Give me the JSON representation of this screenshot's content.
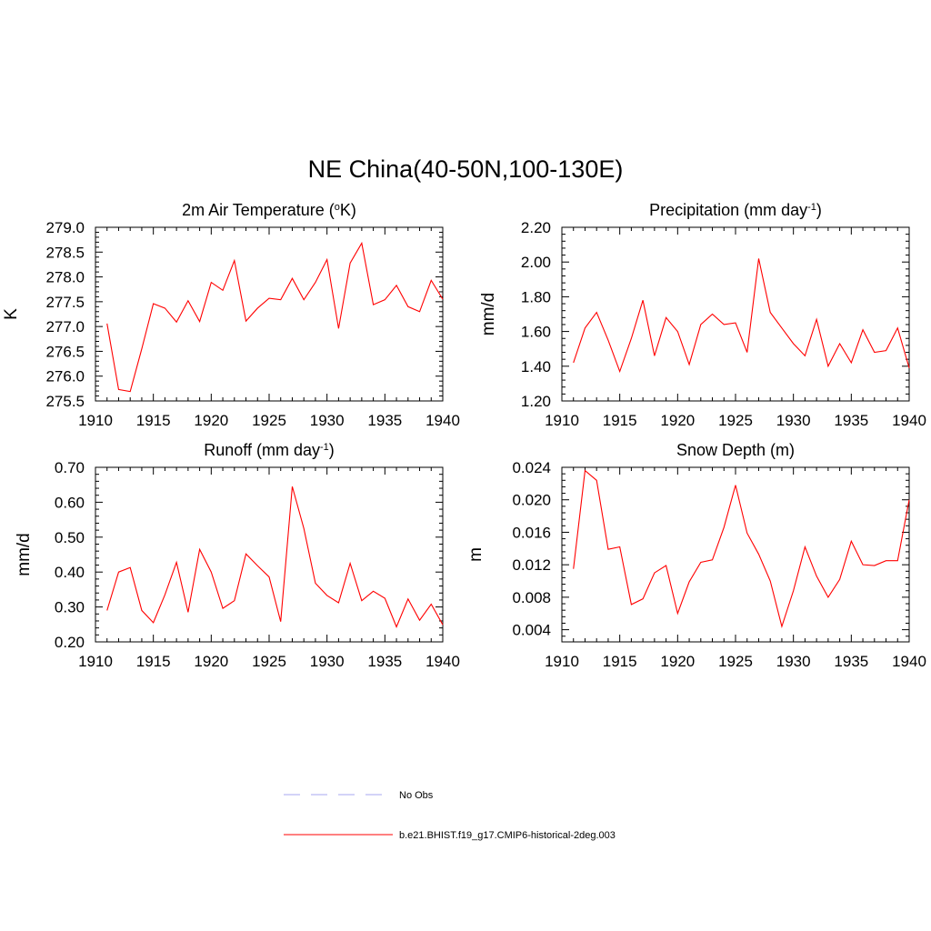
{
  "figure": {
    "title": "NE China(40-50N,100-130E)"
  },
  "legend": {
    "entries": [
      {
        "label": "No Obs",
        "style": "dashed",
        "color": "#a7a7f0"
      },
      {
        "label": "b.e21.BHIST.f19_g17.CMIP6-historical-2deg.003",
        "style": "solid",
        "color": "#ff0000"
      }
    ]
  },
  "chart_data": [
    {
      "type": "line",
      "title": "2m Air Temperature",
      "title_unit": "K",
      "title_sup": "o",
      "ylabel": "K",
      "xlim": [
        1910,
        1940
      ],
      "ylim": [
        275.5,
        279.0
      ],
      "x_ticks": [
        1910,
        1915,
        1920,
        1925,
        1930,
        1935,
        1940
      ],
      "x_tick_labels": [
        "1910",
        "1915",
        "1920",
        "1925",
        "1930",
        "1935",
        "1940"
      ],
      "y_ticks": [
        275.5,
        276.0,
        276.5,
        277.0,
        277.5,
        278.0,
        278.5,
        279.0
      ],
      "y_tick_labels": [
        "275.5",
        "276.0",
        "276.5",
        "277.0",
        "277.5",
        "278.0",
        "278.5",
        "279.0"
      ],
      "grid": false,
      "series": [
        {
          "color": "#ff0000",
          "x": [
            1911,
            1912,
            1913,
            1914,
            1915,
            1916,
            1917,
            1918,
            1919,
            1920,
            1921,
            1922,
            1923,
            1924,
            1925,
            1926,
            1927,
            1928,
            1929,
            1930,
            1931,
            1932,
            1933,
            1934,
            1935,
            1936,
            1937,
            1938,
            1939,
            1940
          ],
          "values": [
            277.06,
            275.73,
            275.69,
            276.55,
            277.46,
            277.37,
            277.09,
            277.52,
            277.1,
            277.89,
            277.73,
            278.33,
            277.11,
            277.37,
            277.57,
            277.54,
            277.97,
            277.54,
            277.89,
            278.35,
            276.96,
            278.28,
            278.68,
            277.44,
            277.54,
            277.83,
            277.4,
            277.3,
            277.93,
            277.55
          ]
        }
      ]
    },
    {
      "type": "line",
      "title": "Precipitation (mm day",
      "title_sup": "-1",
      "title_tail": ")",
      "ylabel": "mm/d",
      "xlim": [
        1910,
        1940
      ],
      "ylim": [
        1.2,
        2.2
      ],
      "x_ticks": [
        1910,
        1915,
        1920,
        1925,
        1930,
        1935,
        1940
      ],
      "x_tick_labels": [
        "1910",
        "1915",
        "1920",
        "1925",
        "1930",
        "1935",
        "1940"
      ],
      "y_ticks": [
        1.2,
        1.4,
        1.6,
        1.8,
        2.0,
        2.2
      ],
      "y_tick_labels": [
        "1.20",
        "1.40",
        "1.60",
        "1.80",
        "2.00",
        "2.20"
      ],
      "grid": false,
      "series": [
        {
          "color": "#ff0000",
          "x": [
            1911,
            1912,
            1913,
            1914,
            1915,
            1916,
            1917,
            1918,
            1919,
            1920,
            1921,
            1922,
            1923,
            1924,
            1925,
            1926,
            1927,
            1928,
            1929,
            1930,
            1931,
            1932,
            1933,
            1934,
            1935,
            1936,
            1937,
            1938,
            1939,
            1940
          ],
          "values": [
            1.42,
            1.62,
            1.71,
            1.55,
            1.37,
            1.56,
            1.78,
            1.46,
            1.68,
            1.6,
            1.41,
            1.64,
            1.7,
            1.64,
            1.65,
            1.48,
            2.02,
            1.71,
            1.62,
            1.53,
            1.46,
            1.67,
            1.4,
            1.53,
            1.42,
            1.61,
            1.48,
            1.49,
            1.62,
            1.39
          ]
        }
      ]
    },
    {
      "type": "line",
      "title": "Runoff (mm day",
      "title_sup": "-1",
      "title_tail": ")",
      "ylabel": "mm/d",
      "xlim": [
        1910,
        1940
      ],
      "ylim": [
        0.2,
        0.7
      ],
      "x_ticks": [
        1910,
        1915,
        1920,
        1925,
        1930,
        1935,
        1940
      ],
      "x_tick_labels": [
        "1910",
        "1915",
        "1920",
        "1925",
        "1930",
        "1935",
        "1940"
      ],
      "y_ticks": [
        0.2,
        0.3,
        0.4,
        0.5,
        0.6,
        0.7
      ],
      "y_tick_labels": [
        "0.20",
        "0.30",
        "0.40",
        "0.50",
        "0.60",
        "0.70"
      ],
      "grid": false,
      "series": [
        {
          "color": "#ff0000",
          "x": [
            1911,
            1912,
            1913,
            1914,
            1915,
            1916,
            1917,
            1918,
            1919,
            1920,
            1921,
            1922,
            1923,
            1924,
            1925,
            1926,
            1927,
            1928,
            1929,
            1930,
            1931,
            1932,
            1933,
            1934,
            1935,
            1936,
            1937,
            1938,
            1939,
            1940
          ],
          "values": [
            0.29,
            0.4,
            0.413,
            0.29,
            0.255,
            0.335,
            0.428,
            0.285,
            0.465,
            0.4,
            0.296,
            0.318,
            0.452,
            0.418,
            0.386,
            0.258,
            0.645,
            0.525,
            0.368,
            0.333,
            0.312,
            0.425,
            0.318,
            0.345,
            0.325,
            0.243,
            0.323,
            0.262,
            0.308,
            0.249
          ]
        }
      ]
    },
    {
      "type": "line",
      "title": "Snow Depth (m)",
      "ylabel": "m",
      "xlim": [
        1910,
        1940
      ],
      "ylim": [
        0.0025,
        0.024
      ],
      "x_ticks": [
        1910,
        1915,
        1920,
        1925,
        1930,
        1935,
        1940
      ],
      "x_tick_labels": [
        "1910",
        "1915",
        "1920",
        "1925",
        "1930",
        "1935",
        "1940"
      ],
      "y_ticks": [
        0.004,
        0.008,
        0.012,
        0.016,
        0.02,
        0.024
      ],
      "y_tick_labels": [
        "0.004",
        "0.008",
        "0.012",
        "0.016",
        "0.020",
        "0.024"
      ],
      "grid": false,
      "series": [
        {
          "color": "#ff0000",
          "x": [
            1911,
            1912,
            1913,
            1914,
            1915,
            1916,
            1917,
            1918,
            1919,
            1920,
            1921,
            1922,
            1923,
            1924,
            1925,
            1926,
            1927,
            1928,
            1929,
            1930,
            1931,
            1932,
            1933,
            1934,
            1935,
            1936,
            1937,
            1938,
            1939,
            1940
          ],
          "values": [
            0.0115,
            0.0236,
            0.0224,
            0.0139,
            0.0142,
            0.0071,
            0.0078,
            0.011,
            0.0119,
            0.006,
            0.0099,
            0.0123,
            0.0126,
            0.0166,
            0.0218,
            0.0159,
            0.0133,
            0.01,
            0.0044,
            0.0088,
            0.0142,
            0.0106,
            0.008,
            0.0102,
            0.0149,
            0.012,
            0.0119,
            0.0125,
            0.0125,
            0.02
          ]
        }
      ]
    }
  ]
}
